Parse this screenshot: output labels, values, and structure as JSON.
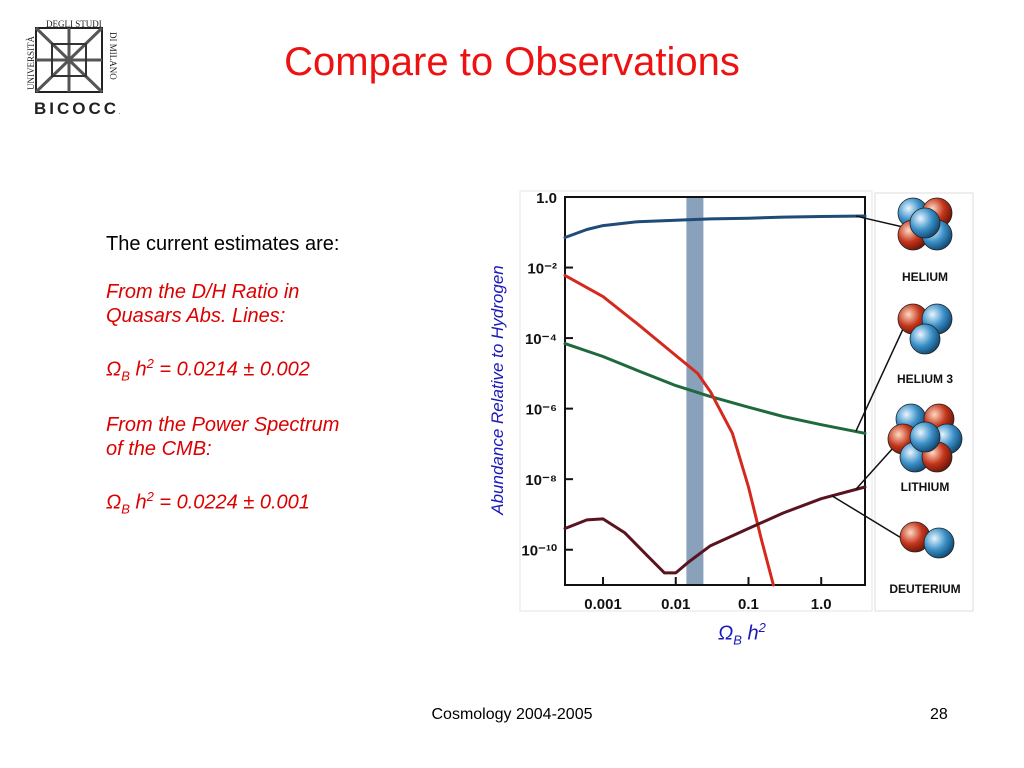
{
  "slide": {
    "title": "Compare to Observations",
    "footer": "Cosmology 2004-2005",
    "page_number": "28"
  },
  "logo": {
    "text_left": "UNIVERSITÀ",
    "text_top": "DEGLI STUDI",
    "text_right": "DI MILANO",
    "text_bottom": "BICOCCA"
  },
  "body": {
    "intro": "The current estimates are:",
    "dh_heading_1": "From the D/H Ratio in",
    "dh_heading_2": "Quasars Abs. Lines:",
    "dh_symbol": "Ω",
    "dh_sub": "B",
    "dh_h": "h",
    "dh_sup": "2",
    "dh_value": "= 0.0214 ± 0.002",
    "cmb_heading_1": "From the Power Spectrum",
    "cmb_heading_2": "of the CMB:",
    "cmb_symbol": "Ω",
    "cmb_sub": "B",
    "cmb_h": "h",
    "cmb_sup": "2",
    "cmb_value": "= 0.0224 ± 0.001"
  },
  "chart_data": {
    "type": "line",
    "xscale": "log",
    "yscale": "log",
    "xlim": [
      0.0003,
      4
    ],
    "ylim": [
      1e-11,
      1
    ],
    "xticks": [
      0.001,
      0.01,
      0.1,
      1.0
    ],
    "xtick_labels": [
      "0.001",
      "0.01",
      "0.1",
      "1.0"
    ],
    "yticks": [
      1,
      0.01,
      0.0001,
      1e-06,
      1e-08,
      1e-10
    ],
    "ytick_labels": [
      "1.0",
      "10⁻²",
      "10⁻⁴",
      "10⁻⁶",
      "10⁻⁸",
      "10⁻¹⁰"
    ],
    "ylabel": "Abundance Relative to Hydrogen",
    "xlabel_symbol": "Ω",
    "xlabel_sub": "B",
    "xlabel_h": "h",
    "xlabel_sup": "2",
    "band": {
      "x0": 0.014,
      "x1": 0.024,
      "color": "#8aa1bb"
    },
    "series": [
      {
        "key": "helium",
        "color": "#1f4b78",
        "points": [
          [
            0.0003,
            0.071
          ],
          [
            0.0006,
            0.12
          ],
          [
            0.001,
            0.155
          ],
          [
            0.003,
            0.2
          ],
          [
            0.01,
            0.22
          ],
          [
            0.03,
            0.24
          ],
          [
            0.1,
            0.25
          ],
          [
            0.3,
            0.27
          ],
          [
            1,
            0.28
          ],
          [
            4,
            0.29
          ]
        ]
      },
      {
        "key": "helium3",
        "color": "#1f6a3c",
        "points": [
          [
            0.0003,
            7e-05
          ],
          [
            0.001,
            3e-05
          ],
          [
            0.003,
            1.2e-05
          ],
          [
            0.01,
            4.5e-06
          ],
          [
            0.03,
            2.2e-06
          ],
          [
            0.1,
            1.1e-06
          ],
          [
            0.3,
            6e-07
          ],
          [
            1,
            3.5e-07
          ],
          [
            4,
            2e-07
          ]
        ]
      },
      {
        "key": "deuterium",
        "color": "#d42a1e",
        "points": [
          [
            0.0003,
            0.006
          ],
          [
            0.001,
            0.0015
          ],
          [
            0.003,
            0.00025
          ],
          [
            0.01,
            3.2e-05
          ],
          [
            0.02,
            1e-05
          ],
          [
            0.03,
            3e-06
          ],
          [
            0.06,
            2e-07
          ],
          [
            0.1,
            6e-09
          ],
          [
            0.15,
            2e-10
          ],
          [
            0.22,
            1e-11
          ]
        ]
      },
      {
        "key": "lithium",
        "color": "#5a1420",
        "points": [
          [
            0.0003,
            4e-10
          ],
          [
            0.0006,
            7e-10
          ],
          [
            0.001,
            7.5e-10
          ],
          [
            0.002,
            3e-10
          ],
          [
            0.004,
            7e-11
          ],
          [
            0.007,
            2.2e-11
          ],
          [
            0.01,
            2.2e-11
          ],
          [
            0.015,
            4.5e-11
          ],
          [
            0.03,
            1.3e-10
          ],
          [
            0.1,
            4e-10
          ],
          [
            0.3,
            1.1e-09
          ],
          [
            1,
            2.8e-09
          ],
          [
            4,
            6e-09
          ]
        ]
      }
    ],
    "element_labels": [
      "HELIUM",
      "HELIUM 3",
      "LITHIUM",
      "DEUTERIUM"
    ]
  }
}
